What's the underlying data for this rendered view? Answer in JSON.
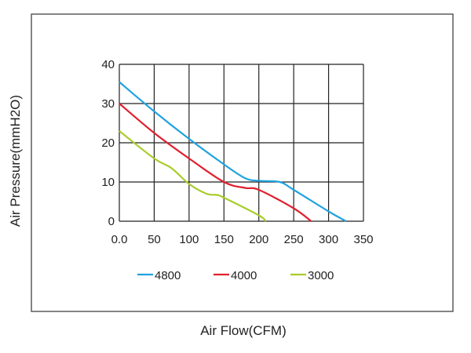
{
  "chart_data": {
    "type": "line",
    "title": "",
    "xlabel": "Air Flow(CFM)",
    "ylabel": "Air Pressure(mmH2O)",
    "xlim": [
      0,
      350
    ],
    "ylim": [
      0,
      40
    ],
    "grid": true,
    "x_ticks": [
      "0.0",
      "50",
      "100",
      "150",
      "200",
      "250",
      "300",
      "350"
    ],
    "y_ticks": [
      "0",
      "10",
      "20",
      "30",
      "40"
    ],
    "legend_position": "bottom",
    "series": [
      {
        "name": "4800",
        "color": "#1fa3e0",
        "points": [
          [
            0,
            35.5
          ],
          [
            50,
            28
          ],
          [
            100,
            21
          ],
          [
            150,
            14.5
          ],
          [
            180,
            11
          ],
          [
            200,
            10.3
          ],
          [
            230,
            10
          ],
          [
            250,
            8
          ],
          [
            300,
            2.5
          ],
          [
            325,
            0
          ]
        ]
      },
      {
        "name": "4000",
        "color": "#e0202e",
        "points": [
          [
            0,
            30
          ],
          [
            50,
            22.5
          ],
          [
            100,
            16
          ],
          [
            150,
            10
          ],
          [
            180,
            8.5
          ],
          [
            200,
            8
          ],
          [
            250,
            3.3
          ],
          [
            275,
            0
          ]
        ]
      },
      {
        "name": "3000",
        "color": "#a8cc2a",
        "points": [
          [
            0,
            23
          ],
          [
            50,
            16
          ],
          [
            75,
            13.5
          ],
          [
            100,
            9.5
          ],
          [
            125,
            7
          ],
          [
            140,
            6.7
          ],
          [
            150,
            6
          ],
          [
            200,
            1.5
          ],
          [
            210,
            0
          ]
        ]
      }
    ]
  }
}
